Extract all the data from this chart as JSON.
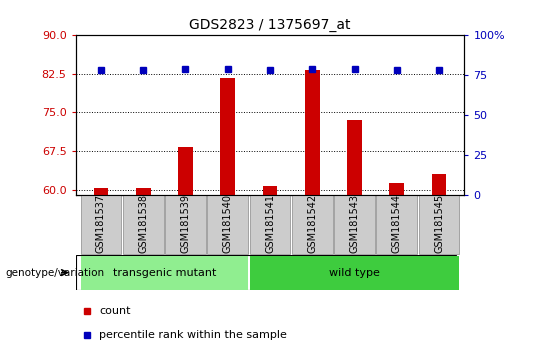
{
  "title": "GDS2823 / 1375697_at",
  "samples": [
    "GSM181537",
    "GSM181538",
    "GSM181539",
    "GSM181540",
    "GSM181541",
    "GSM181542",
    "GSM181543",
    "GSM181544",
    "GSM181545"
  ],
  "counts": [
    60.3,
    60.3,
    68.2,
    81.8,
    60.6,
    83.2,
    73.5,
    61.2,
    63.0
  ],
  "percentile_ranks": [
    78,
    78,
    79,
    79,
    78,
    79,
    79,
    78,
    78
  ],
  "ylim_left": [
    59,
    90
  ],
  "ylim_right": [
    0,
    100
  ],
  "yticks_left": [
    60,
    67.5,
    75,
    82.5,
    90
  ],
  "yticks_right": [
    0,
    25,
    50,
    75,
    100
  ],
  "groups": [
    {
      "label": "transgenic mutant",
      "start": 0,
      "end": 3,
      "color": "#90EE90"
    },
    {
      "label": "wild type",
      "start": 4,
      "end": 8,
      "color": "#3ECC3E"
    }
  ],
  "group_label": "genotype/variation",
  "bar_color": "#CC0000",
  "dot_color": "#0000BB",
  "background_color": "#FFFFFF",
  "tick_color_left": "#CC0000",
  "tick_color_right": "#0000BB",
  "legend_count_color": "#CC0000",
  "legend_pct_color": "#0000BB",
  "sample_box_color": "#CCCCCC",
  "bar_width": 0.35
}
